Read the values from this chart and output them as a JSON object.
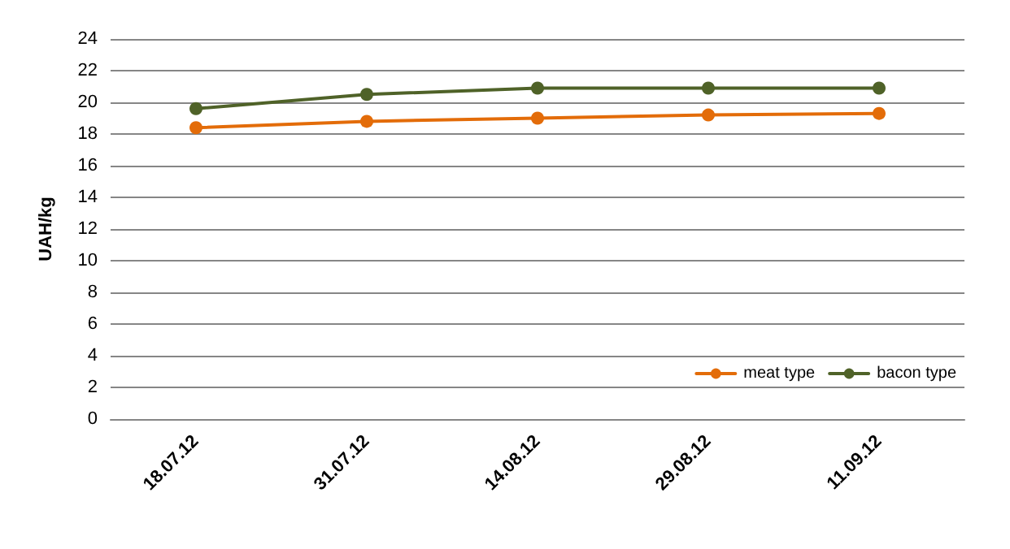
{
  "chart_data": {
    "type": "line",
    "ylabel": "UAH/kg",
    "categories": [
      "18.07.12",
      "31.07.12",
      "14.08.12",
      "29.08.12",
      "11.09.12"
    ],
    "series": [
      {
        "name": "meat type",
        "color": "#e36c09",
        "values": [
          18.4,
          18.8,
          19.0,
          19.2,
          19.3
        ]
      },
      {
        "name": "bacon type",
        "color": "#4f6228",
        "values": [
          19.6,
          20.5,
          20.9,
          20.9,
          20.9
        ]
      }
    ],
    "ylim": [
      0,
      24
    ],
    "yticks": [
      0,
      2,
      4,
      6,
      8,
      10,
      12,
      14,
      16,
      18,
      20,
      22,
      24
    ],
    "grid": "y",
    "legend": "bottom right",
    "marker": "circle",
    "line_style": "solid"
  }
}
